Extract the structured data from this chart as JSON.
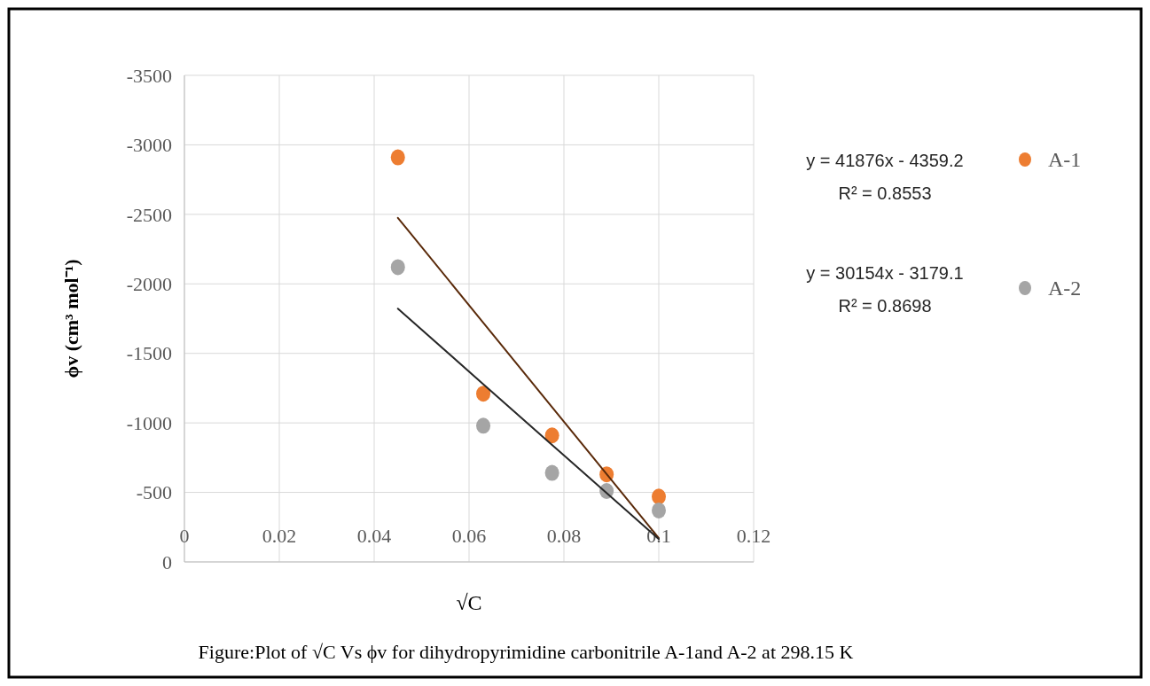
{
  "chart_data": {
    "type": "scatter",
    "xlabel": "√C",
    "ylabel": "ϕv (cm³ mol⁻¹)",
    "annotations": [
      "y = 41876x - 4359.2",
      "R² = 0.8553",
      "y = 30154x - 3179.1",
      "R² = 0.8698",
      "Figure:Plot of  √C Vs  ϕv  for dihydropyrimidine  carbonitrile A-1and A-2 at 298.15 K"
    ],
    "x": [
      0.045,
      0.063,
      0.0775,
      0.089,
      0.1
    ],
    "series": [
      {
        "name": "A-1",
        "color": "#ed7d31",
        "values": [
          -2910,
          -1210,
          -910,
          -630,
          -470
        ]
      },
      {
        "name": "A-2",
        "color": "#a5a5a5",
        "values": [
          -2120,
          -980,
          -640,
          -510,
          -370
        ]
      },
      {
        "type": "line",
        "color": "#5a2a0a",
        "marker": "none",
        "values": [
          -2475,
          -1721,
          -1114,
          -632,
          -172
        ]
      },
      {
        "type": "line",
        "color": "#262626",
        "marker": "none",
        "values": [
          -1822,
          -1279,
          -842,
          -495,
          -164
        ]
      }
    ],
    "xlim": [
      0,
      0.12
    ],
    "xticks": [
      0,
      0.02,
      0.04,
      0.06,
      0.08,
      0.1,
      0.12
    ],
    "ylim": [
      0,
      -3500
    ],
    "yticks": [
      -3500,
      -3000,
      -2500,
      -2000,
      -1500,
      -1000,
      -500,
      0
    ],
    "grid": true,
    "legend": "right",
    "marker": "circle",
    "line_style": "solid"
  }
}
